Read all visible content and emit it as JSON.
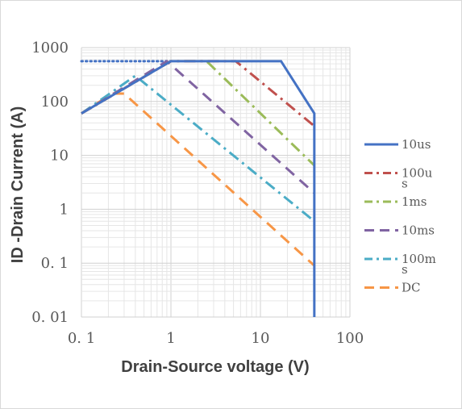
{
  "chart_data": {
    "type": "line",
    "xscale": "log",
    "yscale": "log",
    "xlim": [
      0.1,
      100
    ],
    "ylim": [
      0.01,
      1000
    ],
    "xlabel": "Drain-Source voltage (V)",
    "ylabel": "ID -Drain Current (A)",
    "x_ticks": [
      "0. 1",
      "1",
      "10",
      "100"
    ],
    "y_ticks": [
      "0. 01",
      "0. 1",
      "1",
      "10",
      "100",
      "1000"
    ],
    "grid": true,
    "legend_position": "right",
    "rdson_limit": {
      "color": "#4472C4",
      "points": [
        [
          0.1,
          560
        ],
        [
          1,
          560
        ]
      ]
    },
    "series": [
      {
        "name": "10us",
        "color": "#4472C4",
        "dash": "solid",
        "points": [
          [
            0.1,
            60
          ],
          [
            1,
            560
          ],
          [
            17,
            560
          ],
          [
            40,
            60
          ],
          [
            40,
            0.01
          ]
        ]
      },
      {
        "name": "100us",
        "color": "#C0504D",
        "dash": "dashdot",
        "points": [
          [
            0.1,
            60
          ],
          [
            1,
            560
          ],
          [
            5.3,
            560
          ],
          [
            40,
            35
          ]
        ]
      },
      {
        "name": "1ms",
        "color": "#9BBB59",
        "dash": "dashdot",
        "points": [
          [
            0.1,
            60
          ],
          [
            1,
            560
          ],
          [
            2.5,
            560
          ],
          [
            40,
            6.5
          ]
        ]
      },
      {
        "name": "10ms",
        "color": "#8064A2",
        "dash": "dash",
        "points": [
          [
            0.1,
            60
          ],
          [
            0.9,
            560
          ],
          [
            40,
            2
          ]
        ]
      },
      {
        "name": "100ms",
        "color": "#4BACC6",
        "dash": "dashdot",
        "points": [
          [
            0.1,
            60
          ],
          [
            0.4,
            300
          ],
          [
            40,
            0.6
          ]
        ]
      },
      {
        "name": "DC",
        "color": "#F79646",
        "dash": "dash",
        "points": [
          [
            0.1,
            60
          ],
          [
            0.22,
            140
          ],
          [
            0.3,
            140
          ],
          [
            40,
            0.09
          ]
        ]
      }
    ]
  },
  "legend": [
    {
      "label": "10us",
      "lines": [
        "10us"
      ]
    },
    {
      "label": "100us",
      "lines": [
        "100u",
        "s"
      ]
    },
    {
      "label": "1ms",
      "lines": [
        "1ms"
      ]
    },
    {
      "label": "10ms",
      "lines": [
        "10ms"
      ]
    },
    {
      "label": "100ms",
      "lines": [
        "100m",
        "s"
      ]
    },
    {
      "label": "DC",
      "lines": [
        "DC"
      ]
    }
  ]
}
